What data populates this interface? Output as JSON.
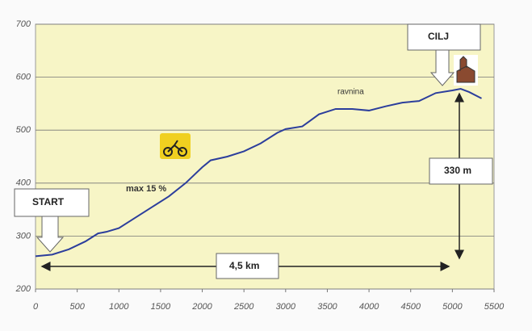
{
  "chart_data": {
    "type": "line",
    "x": [
      0,
      200,
      400,
      600,
      750,
      850,
      1000,
      1200,
      1400,
      1600,
      1800,
      2000,
      2100,
      2300,
      2500,
      2700,
      2900,
      3000,
      3200,
      3400,
      3600,
      3800,
      4000,
      4200,
      4400,
      4600,
      4800,
      5000,
      5100,
      5200,
      5350
    ],
    "series": [
      {
        "color": "#2c3e9c",
        "values": [
          262,
          265,
          275,
          290,
          305,
          308,
          315,
          335,
          355,
          375,
          400,
          430,
          443,
          450,
          460,
          475,
          495,
          502,
          507,
          530,
          540,
          540,
          537,
          545,
          552,
          555,
          570,
          575,
          578,
          572,
          560
        ]
      }
    ],
    "xlim": [
      0,
      5500
    ],
    "xticks": [
      0,
      500,
      1000,
      1500,
      2000,
      2500,
      3000,
      3500,
      4000,
      4500,
      5000,
      5500
    ],
    "ylim": [
      200,
      700
    ],
    "yticks": [
      200,
      300,
      400,
      500,
      600,
      700
    ],
    "grid": true,
    "annotations": [
      "START",
      "CILJ",
      "ravnina",
      "max 15 %",
      "330 m",
      "4,5 km"
    ]
  }
}
